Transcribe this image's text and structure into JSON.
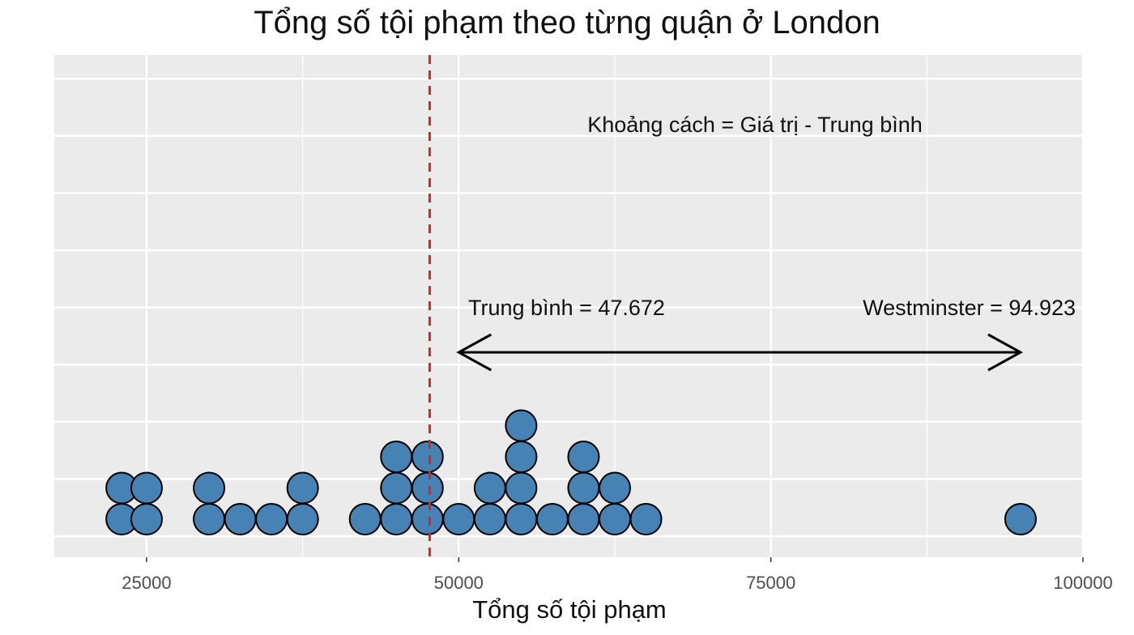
{
  "chart_data": {
    "type": "dot",
    "title": "Tổng số tội phạm theo từng quận ở London",
    "xlabel": "Tổng số tội phạm",
    "ylabel": "",
    "xlim": [
      17500,
      100000
    ],
    "xticks": [
      25000,
      50000,
      75000,
      100000
    ],
    "xtick_labels": [
      "25000",
      "50000",
      "75000",
      "100000"
    ],
    "dot_color": "#4682b4",
    "mean_line_color": "#d62728",
    "mean": 47672,
    "points": [
      {
        "x": 23000,
        "count": 2
      },
      {
        "x": 25000,
        "count": 2
      },
      {
        "x": 30000,
        "count": 2
      },
      {
        "x": 32500,
        "count": 1
      },
      {
        "x": 35000,
        "count": 1
      },
      {
        "x": 37500,
        "count": 2
      },
      {
        "x": 42500,
        "count": 1
      },
      {
        "x": 45000,
        "count": 3
      },
      {
        "x": 47500,
        "count": 3
      },
      {
        "x": 50000,
        "count": 1
      },
      {
        "x": 52500,
        "count": 2
      },
      {
        "x": 55000,
        "count": 4
      },
      {
        "x": 57500,
        "count": 1
      },
      {
        "x": 60000,
        "count": 3
      },
      {
        "x": 62500,
        "count": 2
      },
      {
        "x": 65000,
        "count": 1
      },
      {
        "x": 95000,
        "count": 1
      }
    ],
    "arrow": {
      "from": 50000,
      "to": 95000
    },
    "annotations": {
      "formula": "Khoảng cách = Giá trị - Trung bình",
      "mean_label": "Trung bình = 47.672",
      "outlier_label": "Westminster = 94.923"
    }
  }
}
